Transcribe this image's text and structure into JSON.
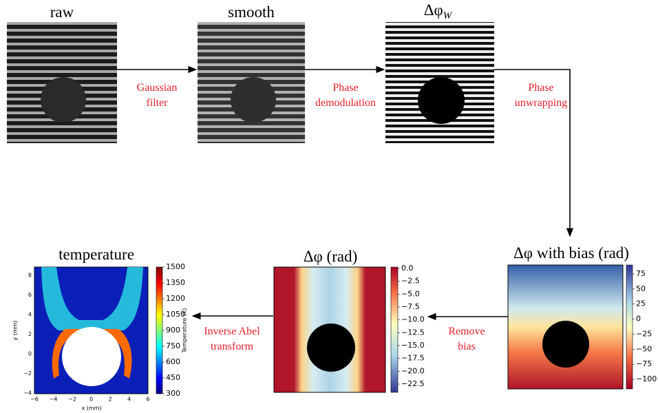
{
  "panels": [
    {
      "title": "raw"
    },
    {
      "title": "smooth"
    },
    {
      "title": "Δφ",
      "title_sub": "W"
    },
    {
      "title": "Δφ with bias (rad)",
      "colorbar_ticks": [
        "75",
        "50",
        "25",
        "0",
        "−25",
        "−50",
        "−75",
        "−100"
      ]
    },
    {
      "title": "Δφ (rad)",
      "colorbar_ticks": [
        "0.0",
        "−2.5",
        "−5.0",
        "−7.5",
        "−10.0",
        "−12.5",
        "−15.0",
        "−17.5",
        "−20.0",
        "−22.5"
      ]
    },
    {
      "title": "temperature",
      "colorbar_ticks": [
        "1500",
        "1350",
        "1200",
        "1050",
        "900",
        "750",
        "600",
        "450",
        "300"
      ],
      "colorbar_label": "Temperature (K)",
      "xticks": [
        "−6",
        "−4",
        "−2",
        "0",
        "2",
        "4",
        "6"
      ],
      "yticks": [
        "8",
        "6",
        "4",
        "2",
        "0",
        "−2",
        "−4"
      ],
      "xlabel": "x (mm)",
      "ylabel": "y (mm)"
    }
  ],
  "steps": [
    [
      "Gaussian",
      "filter"
    ],
    [
      "Phase",
      "demodulation"
    ],
    [
      "Phase",
      "unwrapping"
    ],
    [
      "Remove",
      "bias"
    ],
    [
      "Inverse Abel",
      "transform"
    ]
  ]
}
